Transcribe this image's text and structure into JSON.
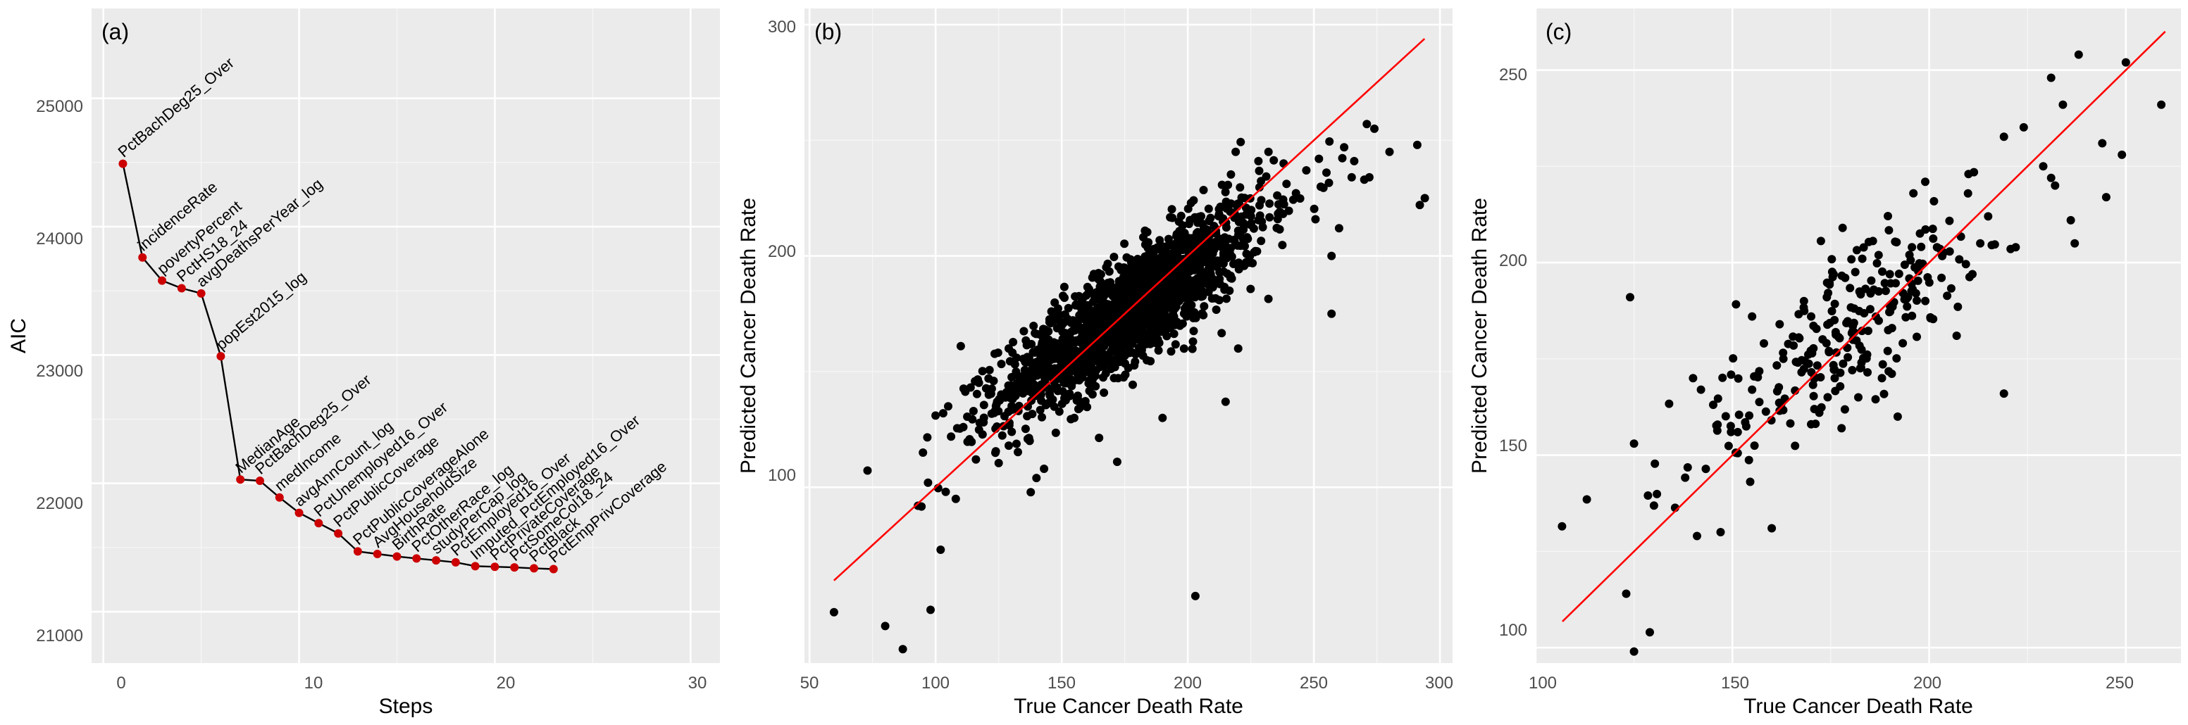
{
  "chart_data": [
    {
      "type": "line",
      "panel_label": "(a)",
      "xlabel": "Steps",
      "ylabel": "AIC",
      "xlim": [
        -0.6,
        31.5
      ],
      "ylim": [
        20600,
        25700
      ],
      "xticks": [
        0,
        10,
        20,
        30
      ],
      "yticks": [
        21000,
        22000,
        23000,
        24000,
        25000
      ],
      "x_tick_labels": [
        "0",
        "10",
        "20",
        "30"
      ],
      "y_tick_labels": [
        "21000",
        "22000",
        "23000",
        "24000",
        "25000"
      ],
      "grid": true,
      "line_color": "#000000",
      "point_color": "#cc0000",
      "steps": [
        {
          "x": 1,
          "y": 24490,
          "label": "PctBachDeg25_Over"
        },
        {
          "x": 2,
          "y": 23760,
          "label": "incidenceRate"
        },
        {
          "x": 3,
          "y": 23580,
          "label": "povertyPercent"
        },
        {
          "x": 4,
          "y": 23520,
          "label": "PctHS18_24"
        },
        {
          "x": 5,
          "y": 23480,
          "label": "avgDeathsPerYear_log"
        },
        {
          "x": 6,
          "y": 22990,
          "label": "popEst2015_log"
        },
        {
          "x": 7,
          "y": 22030,
          "label": "MedianAge"
        },
        {
          "x": 8,
          "y": 22020,
          "label": "PctBachDeg25_Over"
        },
        {
          "x": 9,
          "y": 21890,
          "label": "medIncome"
        },
        {
          "x": 10,
          "y": 21770,
          "label": "avgAnnCount_log"
        },
        {
          "x": 11,
          "y": 21690,
          "label": "PctUnemployed16_Over"
        },
        {
          "x": 12,
          "y": 21610,
          "label": "PctPublicCoverage"
        },
        {
          "x": 13,
          "y": 21470,
          "label": "PctPublicCoverageAlone"
        },
        {
          "x": 14,
          "y": 21450,
          "label": "AvgHouseholdSize"
        },
        {
          "x": 15,
          "y": 21430,
          "label": "BirthRate"
        },
        {
          "x": 16,
          "y": 21415,
          "label": "PctOtherRace_log"
        },
        {
          "x": 17,
          "y": 21400,
          "label": "studyPerCap_log"
        },
        {
          "x": 18,
          "y": 21385,
          "label": "PctEmployed16_Over"
        },
        {
          "x": 19,
          "y": 21355,
          "label": "Imputed_PctEmployed16_Over"
        },
        {
          "x": 20,
          "y": 21350,
          "label": "PctPrivateCoverage"
        },
        {
          "x": 21,
          "y": 21345,
          "label": "PctSomeCol18_24"
        },
        {
          "x": 22,
          "y": 21338,
          "label": "PctBlack"
        },
        {
          "x": 23,
          "y": 21332,
          "label": "PctEmpPrivCoverage"
        }
      ]
    },
    {
      "type": "scatter",
      "panel_label": "(b)",
      "xlabel": "True Cancer Death Rate",
      "ylabel": "Predicted Cancer Death Rate",
      "xlim": [
        48,
        305
      ],
      "ylim": [
        24,
        307
      ],
      "xticks": [
        50,
        100,
        150,
        200,
        250,
        300
      ],
      "yticks": [
        100,
        200,
        300
      ],
      "x_tick_labels": [
        "50",
        "100",
        "150",
        "200",
        "250",
        "300"
      ],
      "y_tick_labels": [
        "100",
        "200",
        "300"
      ],
      "grid": true,
      "point_color": "#000000",
      "fit_line": {
        "color": "#ff0000",
        "x": [
          59.7,
          293.9
        ],
        "y": [
          59.7,
          293.9
        ]
      },
      "point_count": 1700,
      "point_core": {
        "x_mean": 178,
        "x_sd": 26,
        "y_slope": 0.72,
        "y_intercept": 49,
        "y_noise_sd": 12
      },
      "point_outliers": [
        {
          "x": 59.7,
          "y": 46
        },
        {
          "x": 80,
          "y": 40
        },
        {
          "x": 87,
          "y": 30
        },
        {
          "x": 98,
          "y": 47
        },
        {
          "x": 203,
          "y": 53
        },
        {
          "x": 257,
          "y": 175
        },
        {
          "x": 257,
          "y": 200
        },
        {
          "x": 260,
          "y": 212
        },
        {
          "x": 292,
          "y": 222
        },
        {
          "x": 294,
          "y": 225
        },
        {
          "x": 291,
          "y": 248
        },
        {
          "x": 280,
          "y": 245
        },
        {
          "x": 271,
          "y": 257
        },
        {
          "x": 274,
          "y": 255
        },
        {
          "x": 262,
          "y": 247
        },
        {
          "x": 266,
          "y": 241
        },
        {
          "x": 270,
          "y": 233
        },
        {
          "x": 238,
          "y": 240
        },
        {
          "x": 232,
          "y": 245
        },
        {
          "x": 219,
          "y": 245
        },
        {
          "x": 228,
          "y": 241
        },
        {
          "x": 247,
          "y": 237
        },
        {
          "x": 252,
          "y": 242
        },
        {
          "x": 255,
          "y": 236
        },
        {
          "x": 265,
          "y": 234
        },
        {
          "x": 272,
          "y": 234
        },
        {
          "x": 105,
          "y": 135
        },
        {
          "x": 103,
          "y": 132
        },
        {
          "x": 100,
          "y": 131
        },
        {
          "x": 93,
          "y": 92
        },
        {
          "x": 95,
          "y": 115
        },
        {
          "x": 97,
          "y": 102
        },
        {
          "x": 102,
          "y": 73
        },
        {
          "x": 104,
          "y": 98
        },
        {
          "x": 108,
          "y": 95
        },
        {
          "x": 121,
          "y": 147
        },
        {
          "x": 123,
          "y": 146
        },
        {
          "x": 110,
          "y": 161
        },
        {
          "x": 111,
          "y": 126
        },
        {
          "x": 116,
          "y": 112
        },
        {
          "x": 129,
          "y": 118
        },
        {
          "x": 140,
          "y": 104
        },
        {
          "x": 143,
          "y": 108
        },
        {
          "x": 155,
          "y": 130
        },
        {
          "x": 172,
          "y": 111
        },
        {
          "x": 190,
          "y": 130
        },
        {
          "x": 215,
          "y": 137
        },
        {
          "x": 220,
          "y": 160
        },
        {
          "x": 196,
          "y": 196
        },
        {
          "x": 184,
          "y": 174
        }
      ]
    },
    {
      "type": "scatter",
      "panel_label": "(c)",
      "xlabel": "True Cancer Death Rate",
      "ylabel": "Predicted Cancer Death Rate",
      "xlim": [
        100,
        264
      ],
      "ylim": [
        96,
        266
      ],
      "xticks": [
        100,
        150,
        200,
        250
      ],
      "yticks": [
        100,
        150,
        200,
        250
      ],
      "x_tick_labels": [
        "100",
        "150",
        "200",
        "250"
      ],
      "y_tick_labels": [
        "100",
        "150",
        "200",
        "250"
      ],
      "grid": true,
      "point_color": "#000000",
      "fit_line": {
        "color": "#ff0000",
        "x": [
          106.8,
          260.0
        ],
        "y": [
          106.8,
          260.0
        ]
      },
      "point_count": 300,
      "point_core": {
        "x_mean": 178,
        "x_sd": 21,
        "y_slope": 0.78,
        "y_intercept": 42,
        "y_noise_sd": 9.5
      },
      "point_outliers": [
        {
          "x": 106.7,
          "y": 131.5
        },
        {
          "x": 113,
          "y": 138.5
        },
        {
          "x": 123,
          "y": 114
        },
        {
          "x": 124,
          "y": 191
        },
        {
          "x": 125,
          "y": 99
        },
        {
          "x": 125,
          "y": 153
        },
        {
          "x": 129,
          "y": 104
        },
        {
          "x": 219,
          "y": 166
        },
        {
          "x": 238,
          "y": 254
        },
        {
          "x": 250,
          "y": 252
        },
        {
          "x": 259,
          "y": 241
        },
        {
          "x": 244,
          "y": 231
        },
        {
          "x": 231,
          "y": 248
        },
        {
          "x": 234,
          "y": 241
        },
        {
          "x": 249,
          "y": 228
        },
        {
          "x": 245,
          "y": 217
        },
        {
          "x": 231,
          "y": 222
        },
        {
          "x": 229,
          "y": 225
        },
        {
          "x": 232,
          "y": 220
        },
        {
          "x": 237,
          "y": 205
        },
        {
          "x": 236,
          "y": 211
        },
        {
          "x": 222,
          "y": 204
        },
        {
          "x": 215,
          "y": 212
        },
        {
          "x": 213,
          "y": 205
        },
        {
          "x": 211,
          "y": 197
        },
        {
          "x": 199,
          "y": 221
        },
        {
          "x": 196,
          "y": 218
        },
        {
          "x": 210,
          "y": 223
        },
        {
          "x": 140,
          "y": 170
        },
        {
          "x": 142,
          "y": 167
        },
        {
          "x": 141,
          "y": 129
        },
        {
          "x": 147,
          "y": 130
        },
        {
          "x": 155,
          "y": 167
        },
        {
          "x": 160,
          "y": 131
        },
        {
          "x": 170,
          "y": 158
        },
        {
          "x": 176,
          "y": 170
        },
        {
          "x": 182,
          "y": 165
        },
        {
          "x": 188,
          "y": 170
        },
        {
          "x": 192,
          "y": 160
        },
        {
          "x": 207,
          "y": 181
        },
        {
          "x": 155,
          "y": 186
        },
        {
          "x": 158,
          "y": 179
        },
        {
          "x": 162,
          "y": 184
        },
        {
          "x": 178,
          "y": 209
        },
        {
          "x": 183,
          "y": 201
        },
        {
          "x": 190,
          "y": 197
        },
        {
          "x": 195,
          "y": 202
        },
        {
          "x": 170,
          "y": 186
        },
        {
          "x": 174,
          "y": 191
        },
        {
          "x": 202,
          "y": 204
        }
      ]
    }
  ]
}
